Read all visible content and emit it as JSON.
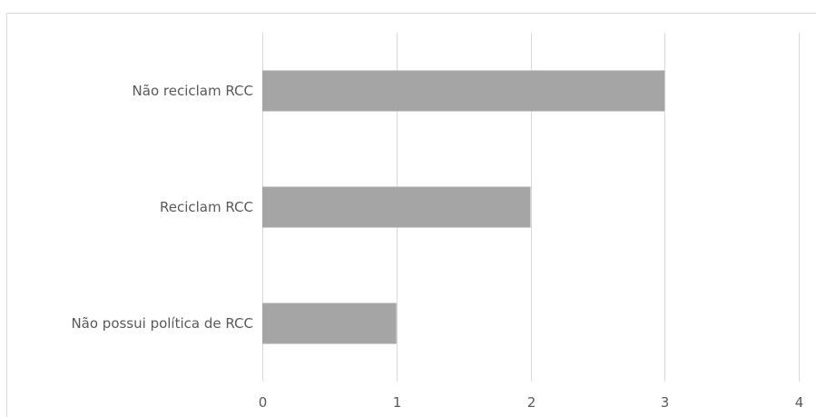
{
  "chart_data": {
    "type": "bar",
    "orientation": "horizontal",
    "categories": [
      "Não possui política de RCC",
      "Reciclam RCC",
      "Não reciclam RCC"
    ],
    "values": [
      1,
      2,
      3
    ],
    "xlim": [
      0,
      4
    ],
    "xticks": [
      "0",
      "1",
      "2",
      "3",
      "4"
    ],
    "title": "",
    "xlabel": "",
    "ylabel": "",
    "grid": "vertical",
    "legend": "none",
    "bar_color": "#a5a5a5",
    "grid_color": "#d9d9d9",
    "text_color": "#595959"
  }
}
